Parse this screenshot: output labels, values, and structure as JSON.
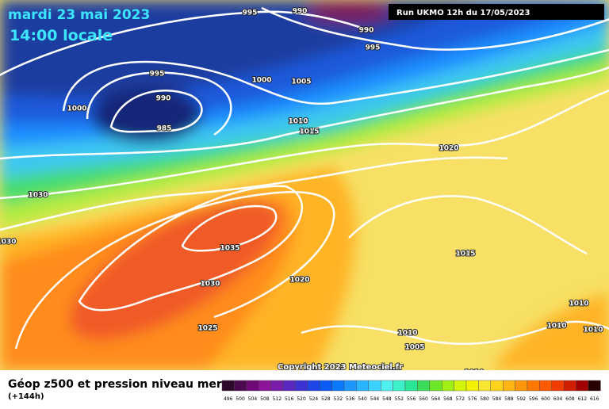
{
  "header": {
    "date": "mardi 23 mai 2023",
    "time": "14:00 locale",
    "run": "Run UKMO 12h du 17/05/2023"
  },
  "copyright": "Copyright 2023 Meteociel.fr",
  "footer": {
    "title": "Géop z500 et pression niveau mer",
    "lead": "(+144h)"
  },
  "isobar_labels": [
    995,
    990,
    990,
    995,
    995,
    1000,
    1005,
    990,
    985,
    1000,
    1010,
    1015,
    1020,
    1030,
    1030,
    1035,
    1030,
    1020,
    1015,
    1025,
    1010,
    1005,
    1010,
    1010,
    1010,
    1010
  ],
  "legend": {
    "values": [
      496,
      500,
      504,
      508,
      512,
      516,
      520,
      524,
      528,
      532,
      536,
      540,
      544,
      548,
      552,
      556,
      560,
      564,
      568,
      572,
      576,
      580,
      584,
      588,
      592,
      596,
      600,
      604,
      608,
      612,
      616
    ]
  }
}
